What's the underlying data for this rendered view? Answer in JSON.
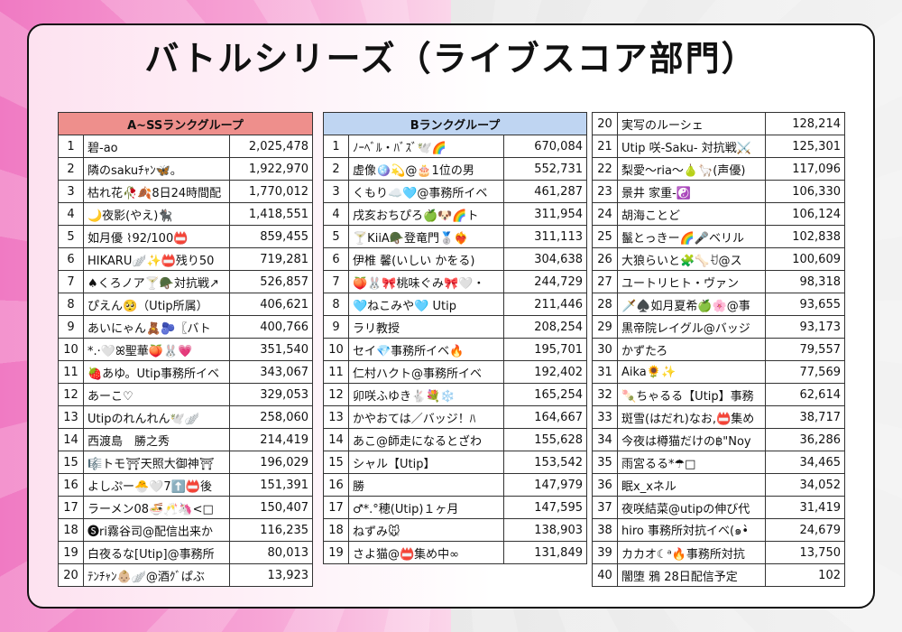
{
  "title": "バトルシリーズ（ライブスコア部門）",
  "group_a": {
    "header": "A~SSランクグループ",
    "rows": [
      [
        "1",
        "碧-ao",
        "2,025,478"
      ],
      [
        "2",
        "隣のsakuﾁｬﾝ🦋。",
        "1,922,970"
      ],
      [
        "3",
        "枯れ花🥀🍂8日24時間配",
        "1,770,012"
      ],
      [
        "4",
        "🌙夜影(やえ)🐈‍⬛",
        "1,418,551"
      ],
      [
        "5",
        "如月優 ⌇92/100📛",
        "859,455"
      ],
      [
        "6",
        "HIKARU🪽✨📛残り50",
        "719,281"
      ],
      [
        "7",
        "♠くろノア🍸🪖対抗戦↗",
        "526,857"
      ],
      [
        "8",
        "ぴえん🥺（Utip所属）",
        "406,621"
      ],
      [
        "9",
        "あいにゃん🧸🫐〖バト",
        "400,766"
      ],
      [
        "10",
        "*.·🤍ꕤ聖華🍑🐰💗",
        "351,540"
      ],
      [
        "11",
        "🍓あゆ。Utip事務所イベ",
        "343,067"
      ],
      [
        "12",
        "あーこ♡",
        "329,053"
      ],
      [
        "13",
        "Utipのれんれん🕊️🪽",
        "258,060"
      ],
      [
        "14",
        "西渡島　勝之秀",
        "214,419"
      ],
      [
        "15",
        "🎼トモ⛩天照大御神⛩",
        "196,029"
      ],
      [
        "16",
        "よしぷー🐣🤍7⬆️📛後",
        "151,391"
      ],
      [
        "17",
        "ラーメン08🍜🥂🦄<□",
        "150,407"
      ],
      [
        "18",
        "🅢ri霧谷司@配信出来か",
        "116,235"
      ],
      [
        "19",
        "白夜るな[Utip]@事務所",
        "80,013"
      ],
      [
        "20",
        "ﾃﾝﾁｬﾝ👶🏼🪽@酒ｸﾞぱぶ",
        "13,923"
      ]
    ]
  },
  "group_b": {
    "header": "Bランクグループ",
    "rows": [
      [
        "1",
        "ﾉｰﾍﾞﾙ・ﾊﾞｽﾞ🕊️🌈",
        "670,084"
      ],
      [
        "2",
        "虚像🪩💫@🎂1位の男",
        "552,731"
      ],
      [
        "3",
        "くもり☁️🩵@事務所イベ",
        "461,287"
      ],
      [
        "4",
        "戌亥おちぴろ🍏🐶🌈ト",
        "311,954"
      ],
      [
        "5",
        "🍸KiiA🪖登竜門🥈❤️‍🔥",
        "311,113"
      ],
      [
        "6",
        "伊椎 馨(いしい かをる)",
        "304,638"
      ],
      [
        "7",
        "🍑🐰🎀桃味ぐみ🎀🤍・",
        "244,729"
      ],
      [
        "8",
        "🩵ねこみや🩵 Utip",
        "211,446"
      ],
      [
        "9",
        "ラリ教授",
        "208,254"
      ],
      [
        "10",
        "セイ💎事務所イベ🔥",
        "195,701"
      ],
      [
        "11",
        "仁村ハクト@事務所イベ",
        "192,402"
      ],
      [
        "12",
        "卯咲ふゆき🐇💐❄️",
        "165,254"
      ],
      [
        "13",
        "かやおては／バッジ！ﾊ",
        "164,667"
      ],
      [
        "14",
        "あこ@師走になるとざわ",
        "155,628"
      ],
      [
        "15",
        "シャル【Utip】",
        "153,542"
      ],
      [
        "16",
        "勝",
        "147,979"
      ],
      [
        "17",
        "♂*.°穂(Utip)１ヶ月",
        "147,595"
      ],
      [
        "18",
        "ねずみ🐭",
        "138,903"
      ],
      [
        "19",
        "さよ猫@📛集め中∞",
        "131,849"
      ]
    ]
  },
  "group_c": {
    "rows": [
      [
        "20",
        "実写のルーシェ",
        "128,214"
      ],
      [
        "21",
        "Utip 咲-Saku- 対抗戦⚔️",
        "125,301"
      ],
      [
        "22",
        "梨愛～ria～🍐🦙(声優)",
        "117,096"
      ],
      [
        "23",
        "景井 家重-☯️",
        "106,330"
      ],
      [
        "24",
        "胡海ことど",
        "106,124"
      ],
      [
        "25",
        "鬣とっきー🌈🎤ベリル",
        "102,838"
      ],
      [
        "26",
        "大狼らいと🧩🦴ꀀ@ス",
        "100,609"
      ],
      [
        "27",
        "ユートリヒト・ヴァン",
        "98,318"
      ],
      [
        "28",
        "🗡️♠️如月夏希🍏🌸@事",
        "93,655"
      ],
      [
        "29",
        "黒帝院レイグル@バッジ",
        "93,173"
      ],
      [
        "30",
        "かずたろ",
        "79,557"
      ],
      [
        "31",
        "Aika🌻✨",
        "77,569"
      ],
      [
        "32",
        "🍡ちゃるる【Utip】事務",
        "62,614"
      ],
      [
        "33",
        "斑雪(はだれ)なお,📛集め",
        "38,717"
      ],
      [
        "34",
        "今夜は樽猫だけの฿\"Noy",
        "36,286"
      ],
      [
        "35",
        "雨宮るる*☂︎□",
        "34,465"
      ],
      [
        "36",
        "眠x_xネル",
        "34,052"
      ],
      [
        "37",
        "夜咲結菜@utipの伸び代",
        "31,419"
      ],
      [
        "38",
        "hiro 事務所対抗イベ(๑•̀",
        "24,679"
      ],
      [
        "39",
        "カカオ☾ᵃ🔥事務所対抗",
        "13,750"
      ],
      [
        "40",
        "闇堕 鴉 28日配信予定",
        "102"
      ]
    ]
  }
}
